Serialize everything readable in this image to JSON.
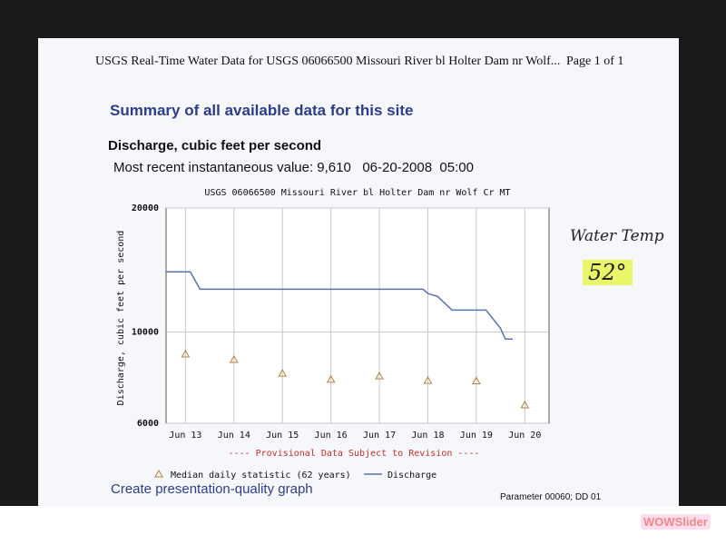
{
  "header": {
    "title": "USGS Real-Time Water Data for USGS 06066500 Missouri River bl Holter Dam nr Wolf...",
    "page": "Page 1 of 1"
  },
  "summary": "Summary of all available data for this site",
  "parameter": "Discharge, cubic feet per second",
  "recent_value": "Most recent instantaneous value: 9,610   06-20-2008  05:00",
  "create_link": "Create presentation-quality graph",
  "parameter_code": "Parameter 00060; DD 01",
  "handwriting": {
    "label": "Water Temp",
    "value": "52°"
  },
  "watermark": "WOWSlider",
  "chart_data": {
    "type": "line",
    "title": "USGS 06066500 Missouri River bl Holter Dam nr Wolf Cr MT",
    "y_label": "Discharge, cubic feet per second",
    "annotation": "---- Provisional Data Subject to Revision ----",
    "xlim": [
      12.6,
      20.5
    ],
    "xticks": [
      {
        "value": 13,
        "label": "Jun 13"
      },
      {
        "value": 14,
        "label": "Jun 14"
      },
      {
        "value": 15,
        "label": "Jun 15"
      },
      {
        "value": 16,
        "label": "Jun 16"
      },
      {
        "value": 17,
        "label": "Jun 17"
      },
      {
        "value": 18,
        "label": "Jun 18"
      },
      {
        "value": 19,
        "label": "Jun 19"
      },
      {
        "value": 20,
        "label": "Jun 20"
      }
    ],
    "ylim": [
      6000,
      20000
    ],
    "yticks": [
      6000,
      10000,
      20000
    ],
    "log_y": true,
    "grid": true,
    "legend": "bottom",
    "series": [
      {
        "name": "Median daily statistic (62 years)",
        "color": "#b08040",
        "marker": "triangle",
        "x": [
          13,
          14,
          15,
          16,
          17,
          18,
          19,
          20
        ],
        "values": [
          8830,
          8560,
          7930,
          7660,
          7810,
          7620,
          7600,
          6640
        ]
      },
      {
        "name": "Discharge",
        "color": "#5a72a8",
        "marker": "line",
        "x": [
          12.6,
          13.1,
          13.3,
          17.9,
          18.0,
          18.2,
          18.5,
          19.2,
          19.5,
          19.6,
          19.75
        ],
        "values": [
          14000,
          14000,
          12700,
          12700,
          12400,
          12200,
          11300,
          11300,
          10200,
          9610,
          9610
        ]
      }
    ]
  }
}
